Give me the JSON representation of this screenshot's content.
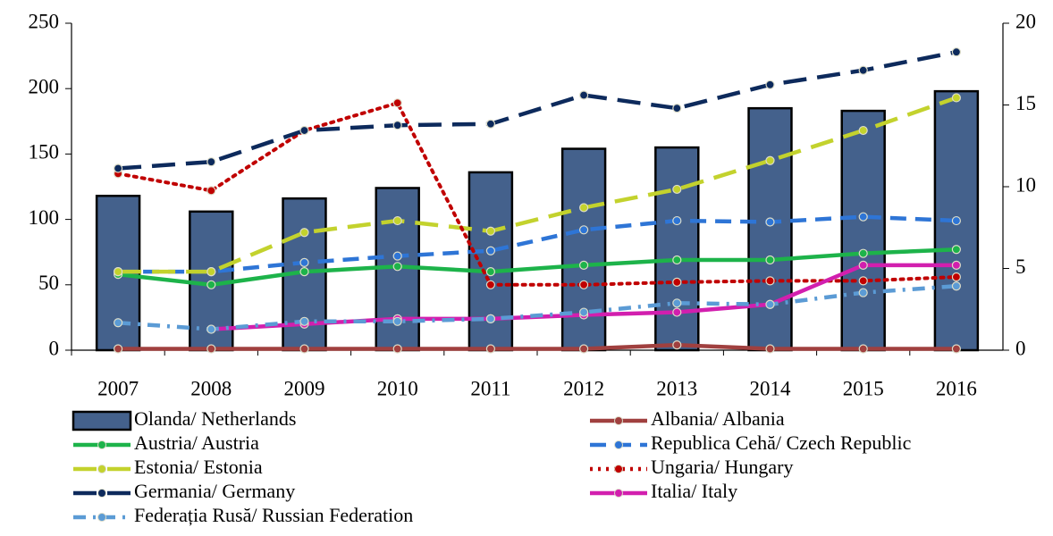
{
  "chart_data": {
    "type": "combo",
    "categories": [
      "2007",
      "2008",
      "2009",
      "2010",
      "2011",
      "2012",
      "2013",
      "2014",
      "2015",
      "2016"
    ],
    "ylim": [
      0,
      250
    ],
    "yticks": [
      0,
      50,
      100,
      150,
      200,
      250
    ],
    "y2lim": [
      0,
      20
    ],
    "y2ticks": [
      0,
      5,
      10,
      15,
      20
    ],
    "series": [
      {
        "name": "Olanda/ Netherlands",
        "type": "bar",
        "color": "#44618c",
        "values": [
          118,
          106,
          116,
          124,
          136,
          154,
          155,
          185,
          183,
          198
        ]
      },
      {
        "name": "Albania/ Albania",
        "type": "line",
        "style": "solid",
        "color": "#a0403f",
        "values": [
          1,
          1,
          1,
          1,
          1,
          1,
          4,
          1,
          1,
          1
        ]
      },
      {
        "name": "Austria/ Austria",
        "type": "line",
        "style": "solid",
        "color": "#1db34a",
        "values": [
          58,
          50,
          60,
          64,
          60,
          65,
          69,
          69,
          74,
          77
        ]
      },
      {
        "name": "Republica Cehă/ Czech Republic",
        "type": "line",
        "style": "dash",
        "color": "#2e75d6",
        "values": [
          60,
          60,
          67,
          72,
          76,
          92,
          99,
          98,
          102,
          99
        ]
      },
      {
        "name": "Estonia/ Estonia",
        "type": "line",
        "style": "longdash",
        "color": "#c3d22d",
        "values": [
          60,
          60,
          90,
          99,
          91,
          109,
          123,
          145,
          168,
          193
        ]
      },
      {
        "name": "Ungaria/ Hungary",
        "type": "line",
        "style": "dot",
        "color": "#c00000",
        "values": [
          135,
          122,
          168,
          189,
          50,
          50,
          52,
          53,
          53,
          56
        ]
      },
      {
        "name": "Germania/ Germany",
        "type": "line",
        "style": "longdash",
        "color": "#0d2a5c",
        "values": [
          139,
          144,
          168,
          172,
          173,
          195,
          185,
          203,
          214,
          228
        ]
      },
      {
        "name": "Italia/ Italy",
        "type": "line",
        "style": "solid",
        "color": "#d21fae",
        "values": [
          null,
          16,
          20,
          24,
          24,
          27,
          29,
          35,
          65,
          65
        ]
      },
      {
        "name": "Federația Rusă/ Russian Federation",
        "type": "line",
        "style": "dashdot",
        "color": "#5b9bd5",
        "values": [
          21,
          16,
          22,
          22,
          24,
          29,
          36,
          35,
          44,
          49
        ]
      }
    ]
  }
}
